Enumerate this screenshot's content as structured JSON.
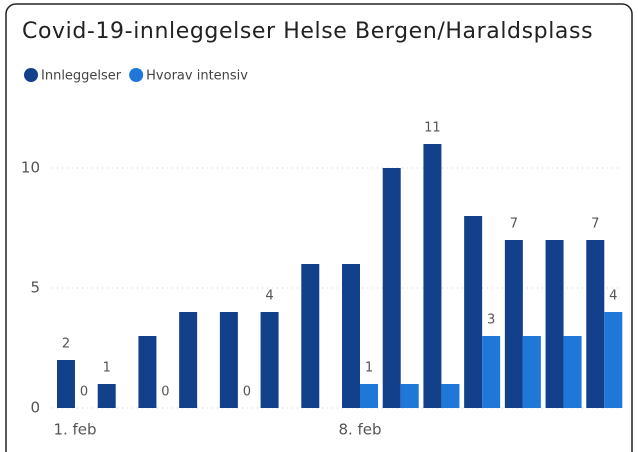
{
  "chart_data": {
    "type": "bar",
    "title": "Covid-19-innleggelser Helse Bergen/Haraldsplass",
    "categories": [
      "1. feb",
      null,
      null,
      null,
      null,
      null,
      null,
      "8. feb",
      null,
      null,
      null,
      null,
      null,
      null
    ],
    "series": [
      {
        "name": "Innleggelser",
        "color": "#12408a",
        "values": [
          2,
          1,
          3,
          4,
          4,
          4,
          6,
          6,
          10,
          11,
          8,
          7,
          7,
          7
        ],
        "value_labels": [
          "2",
          "1",
          null,
          null,
          null,
          "4",
          null,
          null,
          null,
          "11",
          null,
          "7",
          null,
          "7"
        ]
      },
      {
        "name": "Hvorav intensiv",
        "color": "#1f78d8",
        "values": [
          0,
          0,
          0,
          0,
          0,
          0,
          0,
          1,
          1,
          1,
          3,
          3,
          3,
          4
        ],
        "value_labels": [
          "0",
          null,
          "0",
          null,
          "0",
          null,
          null,
          "1",
          null,
          null,
          "3",
          null,
          null,
          "4"
        ]
      }
    ],
    "ylim": [
      0,
      12
    ],
    "yticks": [
      0,
      5,
      10
    ],
    "grid": true,
    "legend": "top-left"
  }
}
